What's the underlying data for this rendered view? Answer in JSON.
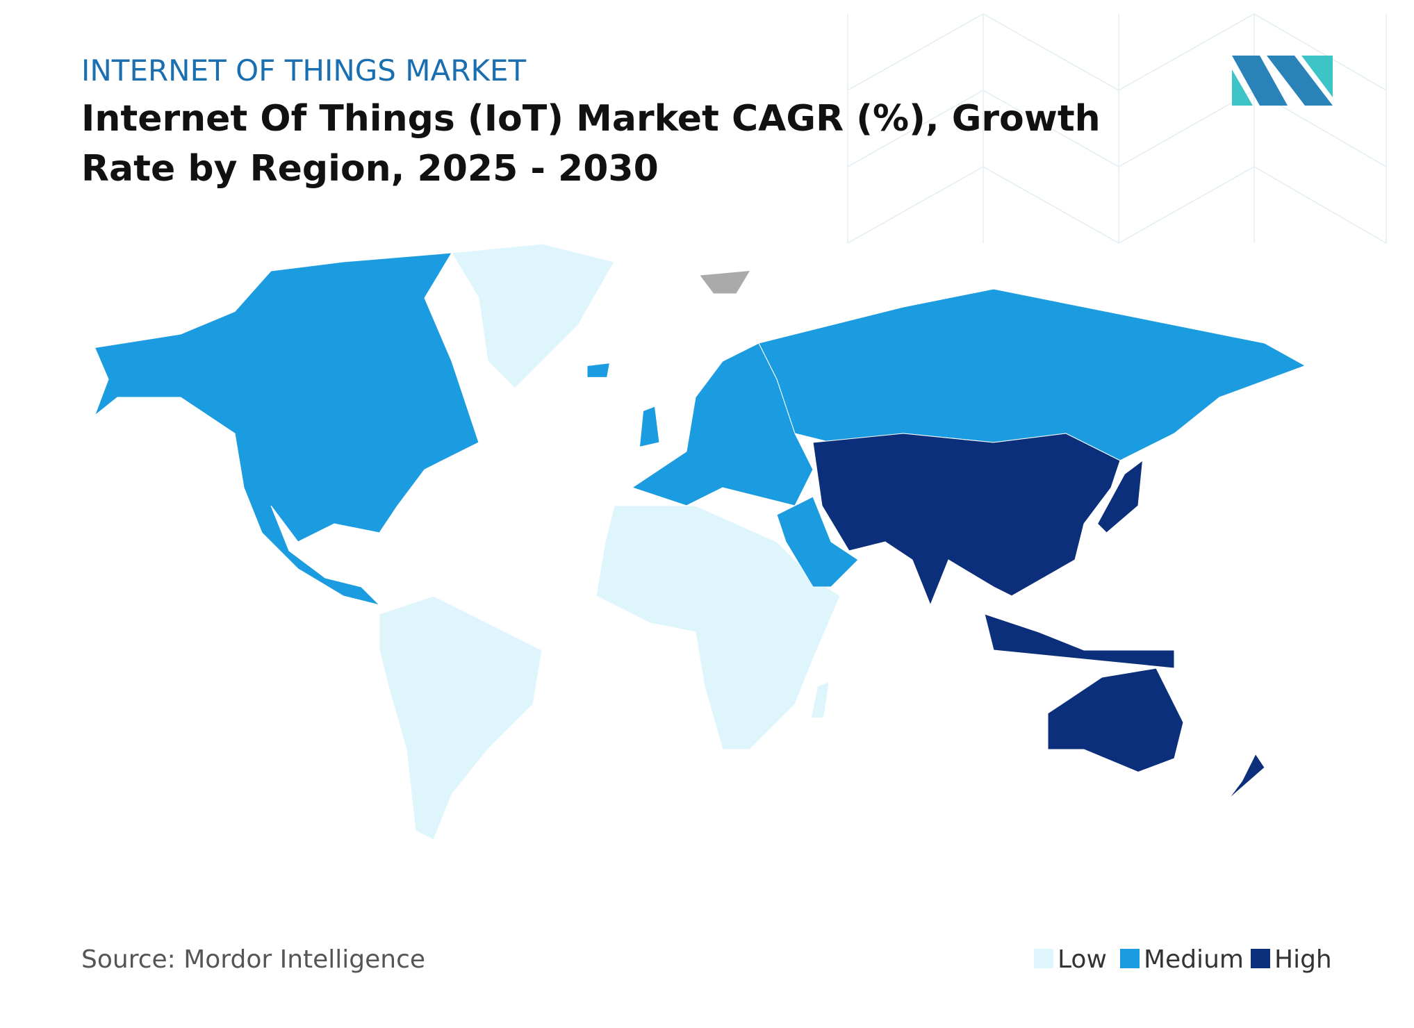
{
  "header": {
    "kicker": "INTERNET OF THINGS MARKET",
    "title_lines": [
      "Internet Of Things (IoT) Market CAGR (%), Growth",
      "Rate by Region, 2025 - 2030"
    ]
  },
  "legend": [
    {
      "label": "Low",
      "color": "#dff5fc"
    },
    {
      "label": "Medium",
      "color": "#1b9ce0"
    },
    {
      "label": "High",
      "color": "#0b2f7b"
    }
  ],
  "source": "Source: Mordor Intelligence"
}
